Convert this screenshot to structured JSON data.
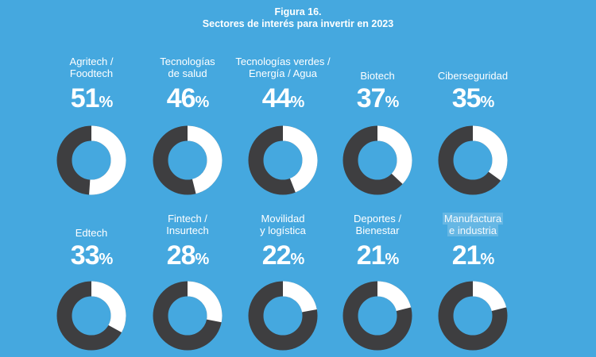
{
  "figure": {
    "title": "Figura 16.",
    "subtitle": "Sectores de interés para invertir en 2023"
  },
  "colors": {
    "background": "#45a8df",
    "share": "#ffffff",
    "remainder": "#3e3e40"
  },
  "chart_data": {
    "type": "donut",
    "title": "Figura 16.",
    "subtitle": "Sectores de interés para invertir en 2023",
    "unit": "%",
    "items": [
      {
        "label_lines": [
          "Agritech /",
          "Foodtech"
        ],
        "value": 51,
        "display": "51"
      },
      {
        "label_lines": [
          "Tecnologías",
          "de salud"
        ],
        "value": 46,
        "display": "46"
      },
      {
        "label_lines": [
          "Tecnologías verdes /",
          "Energía / Agua"
        ],
        "value": 44,
        "display": "44"
      },
      {
        "label_lines": [
          "Biotech"
        ],
        "value": 37,
        "display": "37"
      },
      {
        "label_lines": [
          "Ciberseguridad"
        ],
        "value": 35,
        "display": "35"
      },
      {
        "label_lines": [
          "Edtech"
        ],
        "value": 33,
        "display": "33"
      },
      {
        "label_lines": [
          "Fintech /",
          "Insurtech"
        ],
        "value": 28,
        "display": "28"
      },
      {
        "label_lines": [
          "Movilidad",
          "y logística"
        ],
        "value": 22,
        "display": "22"
      },
      {
        "label_lines": [
          "Deportes /",
          "Bienestar"
        ],
        "value": 21,
        "display": "21"
      },
      {
        "label_lines": [
          "Manufactura",
          "e industria"
        ],
        "value": 21,
        "display": "21",
        "highlighted": true
      }
    ]
  }
}
